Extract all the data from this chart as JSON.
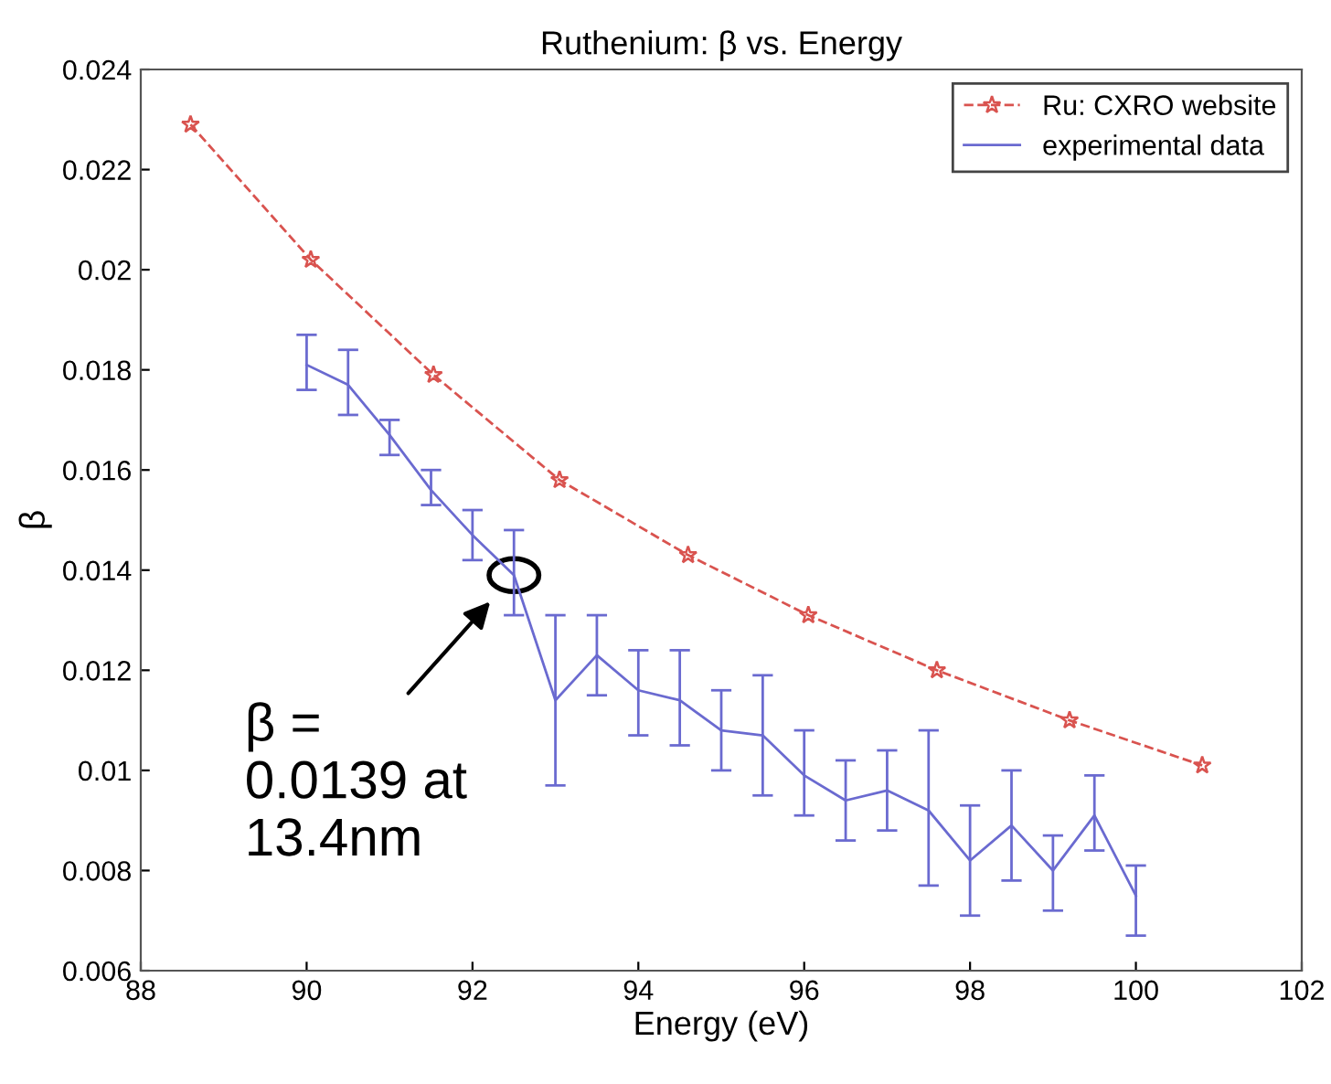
{
  "chart_data": {
    "type": "line",
    "title": "Ruthenium: β vs. Energy",
    "xlabel": "Energy (eV)",
    "ylabel": "β",
    "xlim": [
      88,
      102
    ],
    "xticks": [
      88,
      90,
      92,
      94,
      96,
      98,
      100,
      102
    ],
    "ylim": [
      0.006,
      0.024
    ],
    "yticks": [
      0.006,
      0.008,
      0.01,
      0.012,
      0.014,
      0.016,
      0.018,
      0.02,
      0.022,
      0.024
    ],
    "grid": false,
    "legend": "top right",
    "series": [
      {
        "name": "Ru: CXRO website",
        "color": "#d9534f",
        "marker": "star",
        "line_style": "dashed",
        "x": [
          88.6,
          90.05,
          91.53,
          93.05,
          94.6,
          96.05,
          97.6,
          99.2,
          100.8
        ],
        "values": [
          0.0229,
          0.0202,
          0.0179,
          0.0158,
          0.0143,
          0.0131,
          0.012,
          0.011,
          0.0101
        ]
      },
      {
        "name": "experimental data",
        "color": "#6a6ad0",
        "marker": "none",
        "line_style": "solid",
        "x": [
          90,
          90.5,
          91,
          91.5,
          92,
          92.5,
          93,
          93.5,
          94,
          94.5,
          95,
          95.5,
          96,
          96.5,
          97,
          97.5,
          98,
          98.5,
          99,
          99.5,
          100
        ],
        "values": [
          0.0181,
          0.0177,
          0.0167,
          0.0156,
          0.0147,
          0.0139,
          0.0114,
          0.0123,
          0.0116,
          0.0114,
          0.0108,
          0.0107,
          0.0099,
          0.0094,
          0.0096,
          0.0092,
          0.0082,
          0.0089,
          0.008,
          0.0091,
          0.0075
        ],
        "errors": [
          [
            0.0176,
            0.0187
          ],
          [
            0.0171,
            0.0184
          ],
          [
            0.0163,
            0.017
          ],
          [
            0.0153,
            0.016
          ],
          [
            0.0142,
            0.0152
          ],
          [
            0.0131,
            0.0148
          ],
          [
            0.0097,
            0.0131
          ],
          [
            0.0115,
            0.0131
          ],
          [
            0.0107,
            0.0124
          ],
          [
            0.0105,
            0.0124
          ],
          [
            0.01,
            0.0116
          ],
          [
            0.0095,
            0.0119
          ],
          [
            0.0091,
            0.0108
          ],
          [
            0.0086,
            0.0102
          ],
          [
            0.0088,
            0.0104
          ],
          [
            0.0077,
            0.0108
          ],
          [
            0.0071,
            0.0093
          ],
          [
            0.0078,
            0.01
          ],
          [
            0.0072,
            0.0087
          ],
          [
            0.0084,
            0.0099
          ],
          [
            0.0067,
            0.0081
          ]
        ]
      }
    ],
    "annotations": [
      {
        "text": "β =\n0.0139 at\n13.4nm",
        "x": 92.5,
        "y": 0.0139
      }
    ]
  }
}
